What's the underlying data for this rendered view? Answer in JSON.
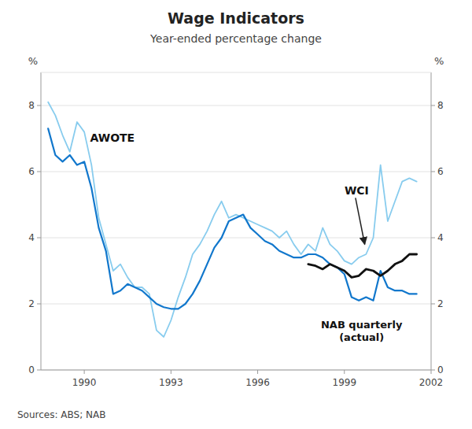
{
  "chart_data": {
    "type": "line",
    "title": "Wage Indicators",
    "subtitle": "Year-ended percentage change",
    "y_label": "%",
    "y2_label": "%",
    "source": "Sources: ABS; NAB",
    "xlim": [
      1988.5,
      2002.0
    ],
    "xticks": [
      1990,
      1993,
      1996,
      1999,
      2002
    ],
    "ylim": [
      0,
      9
    ],
    "yticks": [
      0,
      2,
      4,
      6,
      8
    ],
    "y2lim": [
      0,
      9
    ],
    "y2ticks": [
      0,
      2,
      4,
      6,
      8
    ],
    "grid": true,
    "series": [
      {
        "name": "WCI",
        "color": "#88ccee",
        "x": [
          1988.75,
          1989.0,
          1989.25,
          1989.5,
          1989.75,
          1990.0,
          1990.25,
          1990.5,
          1990.75,
          1991.0,
          1991.25,
          1991.5,
          1991.75,
          1992.0,
          1992.25,
          1992.5,
          1992.75,
          1993.0,
          1993.25,
          1993.5,
          1993.75,
          1994.0,
          1994.25,
          1994.5,
          1994.75,
          1995.0,
          1995.25,
          1995.5,
          1995.75,
          1996.0,
          1996.25,
          1996.5,
          1996.75,
          1997.0,
          1997.25,
          1997.5,
          1997.75,
          1998.0,
          1998.25,
          1998.5,
          1998.75,
          1999.0,
          1999.25,
          1999.5,
          1999.75,
          2000.0,
          2000.25,
          2000.5,
          2000.75,
          2001.0,
          2001.25,
          2001.5
        ],
        "values": [
          8.1,
          7.7,
          7.1,
          6.6,
          7.5,
          7.2,
          6.2,
          4.6,
          3.8,
          3.0,
          3.2,
          2.8,
          2.5,
          2.5,
          2.3,
          1.2,
          1.0,
          1.5,
          2.2,
          2.8,
          3.5,
          3.8,
          4.2,
          4.7,
          5.1,
          4.6,
          4.7,
          4.6,
          4.5,
          4.4,
          4.3,
          4.2,
          4.0,
          4.2,
          3.8,
          3.5,
          3.8,
          3.6,
          4.3,
          3.8,
          3.6,
          3.3,
          3.2,
          3.4,
          3.5,
          4.0,
          6.2,
          4.5,
          5.1,
          5.7,
          5.8,
          5.7
        ]
      },
      {
        "name": "AWOTE",
        "color": "#1177cc",
        "x": [
          1988.75,
          1989.0,
          1989.25,
          1989.5,
          1989.75,
          1990.0,
          1990.25,
          1990.5,
          1990.75,
          1991.0,
          1991.25,
          1991.5,
          1991.75,
          1992.0,
          1992.25,
          1992.5,
          1992.75,
          1993.0,
          1993.25,
          1993.5,
          1993.75,
          1994.0,
          1994.25,
          1994.5,
          1994.75,
          1995.0,
          1995.25,
          1995.5,
          1995.75,
          1996.0,
          1996.25,
          1996.5,
          1996.75,
          1997.0,
          1997.25,
          1997.5,
          1997.75,
          1998.0,
          1998.25,
          1998.5,
          1998.75,
          1999.0,
          1999.25,
          1999.5,
          1999.75,
          2000.0,
          2000.25,
          2000.5,
          2000.75,
          2001.0,
          2001.25,
          2001.5
        ],
        "values": [
          7.3,
          6.5,
          6.3,
          6.5,
          6.2,
          6.3,
          5.5,
          4.3,
          3.6,
          2.3,
          2.4,
          2.6,
          2.5,
          2.4,
          2.2,
          2.0,
          1.9,
          1.85,
          1.85,
          2.0,
          2.3,
          2.7,
          3.2,
          3.7,
          4.0,
          4.5,
          4.6,
          4.7,
          4.3,
          4.1,
          3.9,
          3.8,
          3.6,
          3.5,
          3.4,
          3.4,
          3.5,
          3.5,
          3.4,
          3.2,
          3.1,
          2.9,
          2.2,
          2.1,
          2.2,
          2.1,
          3.0,
          2.5,
          2.4,
          2.4,
          2.3,
          2.3
        ]
      },
      {
        "name": "NAB quarterly\n(actual)",
        "color": "#111111",
        "x": [
          1997.75,
          1998.0,
          1998.25,
          1998.5,
          1998.75,
          1999.0,
          1999.25,
          1999.5,
          1999.75,
          2000.0,
          2000.25,
          2000.5,
          2000.75,
          2001.0,
          2001.25,
          2001.5
        ],
        "values": [
          3.2,
          3.15,
          3.05,
          3.2,
          3.1,
          3.0,
          2.8,
          2.85,
          3.05,
          3.0,
          2.85,
          3.0,
          3.2,
          3.3,
          3.5,
          3.5
        ]
      }
    ]
  }
}
